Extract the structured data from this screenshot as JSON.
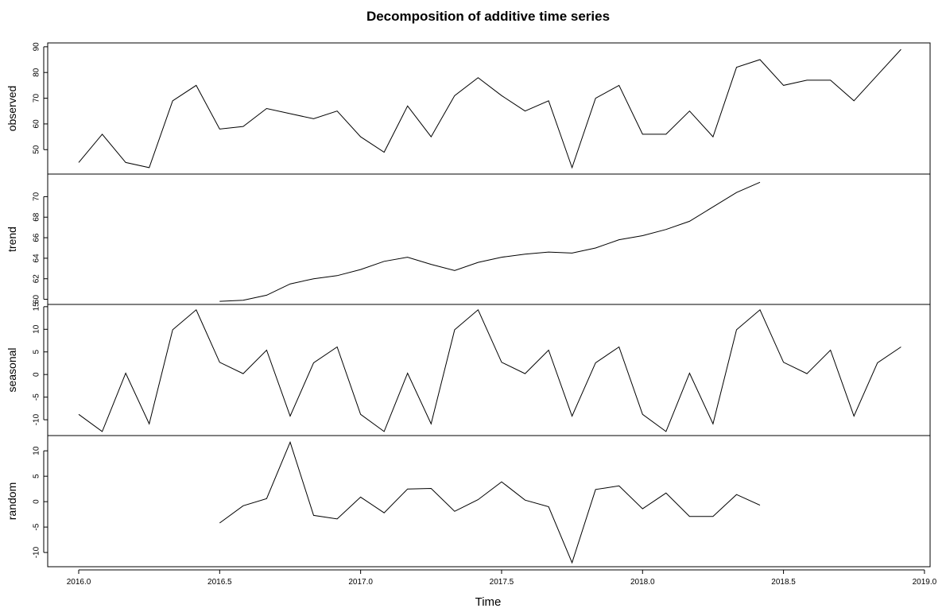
{
  "chart_data": {
    "type": "line",
    "title": "Decomposition of additive time series",
    "xlabel": "Time",
    "xlim": [
      2015.89,
      2019.02
    ],
    "x_ticks": [
      "2016.0",
      "2016.5",
      "2017.0",
      "2017.5",
      "2018.0",
      "2018.5",
      "2019.0"
    ],
    "x_tick_values": [
      2016.0,
      2016.5,
      2017.0,
      2017.5,
      2018.0,
      2018.5,
      2019.0
    ],
    "x_start": 2016.0,
    "x_step": 0.0833333,
    "grid": false,
    "legend": "none",
    "panels": [
      {
        "name": "observed",
        "ylim": [
          40.5,
          91.5
        ],
        "y_ticks": [
          "50",
          "60",
          "70",
          "80",
          "90"
        ],
        "y_tick_values": [
          50,
          60,
          70,
          80,
          90
        ],
        "values": [
          45,
          56,
          45,
          43,
          69,
          75,
          58,
          59,
          66,
          64,
          62,
          65,
          55,
          49,
          67,
          55,
          71,
          78,
          71,
          65,
          69,
          43,
          70,
          75,
          56,
          56,
          65,
          55,
          82,
          85,
          75,
          77,
          77,
          69,
          79,
          89
        ]
      },
      {
        "name": "trend",
        "ylim": [
          59.5,
          72.2
        ],
        "y_ticks": [
          "60",
          "62",
          "64",
          "66",
          "68",
          "70"
        ],
        "y_tick_values": [
          60,
          62,
          64,
          66,
          68,
          70
        ],
        "values": [
          null,
          null,
          null,
          null,
          null,
          null,
          59.8,
          59.9,
          60.4,
          61.5,
          62.0,
          62.3,
          62.9,
          63.7,
          64.1,
          63.4,
          62.8,
          63.6,
          64.1,
          64.4,
          64.6,
          64.5,
          65.0,
          65.8,
          66.2,
          66.8,
          67.6,
          69.0,
          70.4,
          71.4,
          null,
          null,
          null,
          null,
          null,
          null
        ]
      },
      {
        "name": "seasonal",
        "ylim": [
          -13.5,
          15.5
        ],
        "y_ticks": [
          "-10",
          "-5",
          "0",
          "5",
          "10",
          "15"
        ],
        "y_tick_values": [
          -10,
          -5,
          0,
          5,
          10,
          15
        ],
        "values": [
          -8.8,
          -12.6,
          0.3,
          -10.9,
          9.9,
          14.3,
          2.7,
          0.2,
          5.4,
          -9.2,
          2.6,
          6.1,
          -8.8,
          -12.6,
          0.3,
          -10.9,
          9.9,
          14.3,
          2.7,
          0.2,
          5.4,
          -9.2,
          2.6,
          6.1,
          -8.8,
          -12.6,
          0.3,
          -10.9,
          9.9,
          14.3,
          2.7,
          0.2,
          5.4,
          -9.2,
          2.6,
          6.1
        ]
      },
      {
        "name": "random",
        "ylim": [
          -12.8,
          13.0
        ],
        "y_ticks": [
          "-10",
          "-5",
          "0",
          "5",
          "10"
        ],
        "y_tick_values": [
          -10,
          -5,
          0,
          5,
          10
        ],
        "values": [
          null,
          null,
          null,
          null,
          null,
          null,
          -4.2,
          -0.8,
          0.6,
          11.7,
          -2.7,
          -3.4,
          0.9,
          -2.2,
          2.5,
          2.6,
          -1.9,
          0.4,
          3.9,
          0.3,
          -1.0,
          -12.0,
          2.4,
          3.1,
          -1.4,
          1.7,
          -2.9,
          -2.9,
          1.4,
          -0.7,
          null,
          null,
          null,
          null,
          null,
          null
        ]
      }
    ]
  }
}
